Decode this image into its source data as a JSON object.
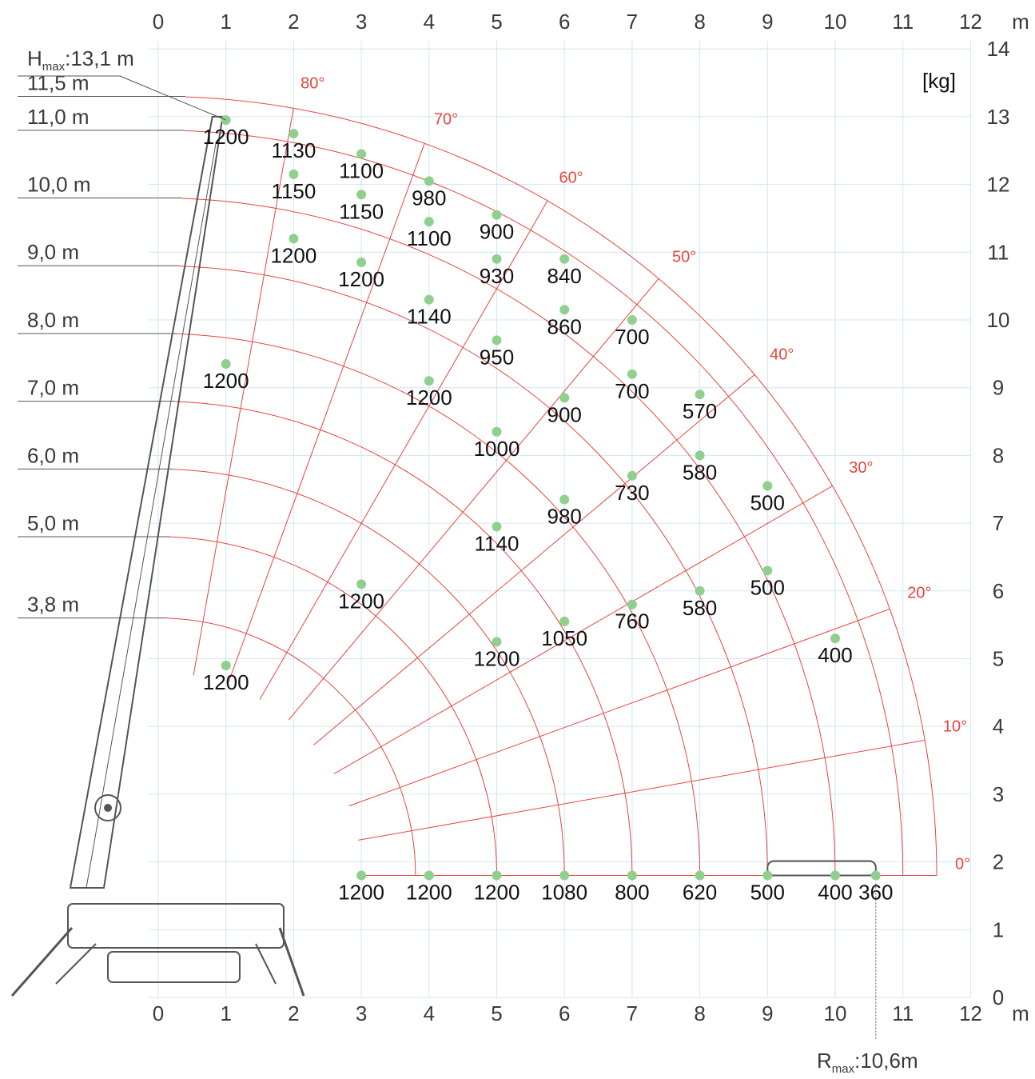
{
  "chart_data": {
    "type": "scatter",
    "x_ticks": [
      "0",
      "1",
      "2",
      "3",
      "4",
      "5",
      "6",
      "7",
      "8",
      "9",
      "10",
      "11",
      "12"
    ],
    "y_ticks": [
      "0",
      "1",
      "2",
      "3",
      "4",
      "5",
      "6",
      "7",
      "8",
      "9",
      "10",
      "11",
      "12",
      "13",
      "14"
    ],
    "x_unit": "m",
    "y_unit": "m",
    "load_unit": "[kg]",
    "xlim": [
      0,
      12
    ],
    "ylim": [
      0,
      14
    ],
    "grid": true,
    "pivot": {
      "x": 0,
      "y": 1.8
    },
    "boom_lengths": [
      {
        "label": "11,5 m",
        "r": 11.5
      },
      {
        "label": "11,0 m",
        "r": 11.0
      },
      {
        "label": "10,0 m",
        "r": 10.0
      },
      {
        "label": "9,0 m",
        "r": 9.0
      },
      {
        "label": "8,0 m",
        "r": 8.0
      },
      {
        "label": "7,0 m",
        "r": 7.0
      },
      {
        "label": "6,0 m",
        "r": 6.0
      },
      {
        "label": "5,0 m",
        "r": 5.0
      },
      {
        "label": "3,8 m",
        "r": 3.8
      }
    ],
    "angles": [
      {
        "label": "0°",
        "deg": 0
      },
      {
        "label": "10°",
        "deg": 10
      },
      {
        "label": "20°",
        "deg": 20
      },
      {
        "label": "30°",
        "deg": 30
      },
      {
        "label": "40°",
        "deg": 40
      },
      {
        "label": "50°",
        "deg": 50
      },
      {
        "label": "60°",
        "deg": 60
      },
      {
        "label": "70°",
        "deg": 70
      },
      {
        "label": "80°",
        "deg": 80
      }
    ],
    "h_max_label": "Hₘₐₓ:13,1 m",
    "h_max": {
      "prefix": "H",
      "sub": "max",
      "text": ":13,1 m"
    },
    "r_max": {
      "prefix": "R",
      "sub": "max",
      "text": ":10,6m"
    },
    "points": [
      {
        "x": 1,
        "y": 12.95,
        "label": "1200"
      },
      {
        "x": 2,
        "y": 12.75,
        "label": "1130"
      },
      {
        "x": 3,
        "y": 12.45,
        "label": "1100"
      },
      {
        "x": 4,
        "y": 12.05,
        "label": "980"
      },
      {
        "x": 5,
        "y": 11.55,
        "label": "900"
      },
      {
        "x": 6,
        "y": 10.9,
        "label": "840"
      },
      {
        "x": 7,
        "y": 10.0,
        "label": "700"
      },
      {
        "x": 8,
        "y": 8.9,
        "label": "570"
      },
      {
        "x": 9,
        "y": 7.55,
        "label": "500"
      },
      {
        "x": 10,
        "y": 5.3,
        "label": "400"
      },
      {
        "x": 2,
        "y": 12.15,
        "label": "1150"
      },
      {
        "x": 3,
        "y": 11.85,
        "label": "1150"
      },
      {
        "x": 4,
        "y": 11.45,
        "label": "1100"
      },
      {
        "x": 5,
        "y": 10.9,
        "label": "930"
      },
      {
        "x": 6,
        "y": 10.15,
        "label": "860"
      },
      {
        "x": 7,
        "y": 9.2,
        "label": "700"
      },
      {
        "x": 8,
        "y": 8.0,
        "label": "580"
      },
      {
        "x": 9,
        "y": 6.3,
        "label": "500"
      },
      {
        "x": 2,
        "y": 11.2,
        "label": "1200"
      },
      {
        "x": 3,
        "y": 10.85,
        "label": "1200"
      },
      {
        "x": 4,
        "y": 10.3,
        "label": "1140"
      },
      {
        "x": 5,
        "y": 9.7,
        "label": "950"
      },
      {
        "x": 6,
        "y": 8.85,
        "label": "900"
      },
      {
        "x": 7,
        "y": 7.7,
        "label": "730"
      },
      {
        "x": 8,
        "y": 6.0,
        "label": "580"
      },
      {
        "x": 1,
        "y": 9.35,
        "label": "1200"
      },
      {
        "x": 4,
        "y": 9.1,
        "label": "1200"
      },
      {
        "x": 5,
        "y": 8.35,
        "label": "1000"
      },
      {
        "x": 6,
        "y": 7.35,
        "label": "980"
      },
      {
        "x": 7,
        "y": 5.8,
        "label": "760"
      },
      {
        "x": 5,
        "y": 6.95,
        "label": "1140"
      },
      {
        "x": 6,
        "y": 5.55,
        "label": "1050"
      },
      {
        "x": 3,
        "y": 6.1,
        "label": "1200"
      },
      {
        "x": 5,
        "y": 5.25,
        "label": "1200"
      },
      {
        "x": 1,
        "y": 4.9,
        "label": "1200"
      },
      {
        "x": 3,
        "y": 1.8,
        "label": "1200"
      },
      {
        "x": 4,
        "y": 1.8,
        "label": "1200"
      },
      {
        "x": 5,
        "y": 1.8,
        "label": "1200"
      },
      {
        "x": 6,
        "y": 1.8,
        "label": "1080"
      },
      {
        "x": 7,
        "y": 1.8,
        "label": "800"
      },
      {
        "x": 8,
        "y": 1.8,
        "label": "620"
      },
      {
        "x": 9,
        "y": 1.8,
        "label": "500"
      },
      {
        "x": 10,
        "y": 1.8,
        "label": "400"
      },
      {
        "x": 10.6,
        "y": 1.8,
        "label": "360"
      }
    ]
  },
  "colors": {
    "grid": "#cfe6f7",
    "arc": "#e8453c",
    "radial": "#e8453c",
    "point": "#8fd08f",
    "text": "#3a3a3a",
    "leader": "#555555",
    "crane": "#555555"
  }
}
